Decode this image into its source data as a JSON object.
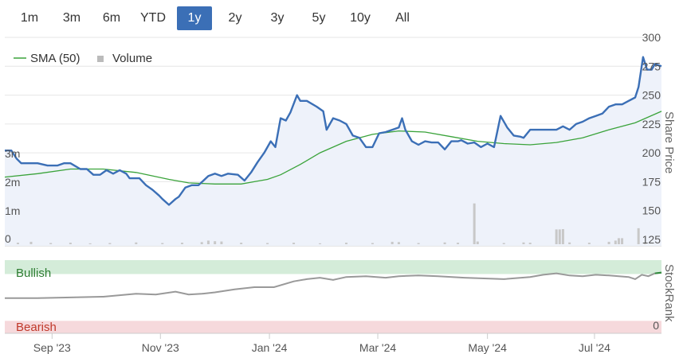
{
  "range_buttons": [
    {
      "label": "1m",
      "active": false
    },
    {
      "label": "3m",
      "active": false
    },
    {
      "label": "6m",
      "active": false
    },
    {
      "label": "YTD",
      "active": false
    },
    {
      "label": "1y",
      "active": true
    },
    {
      "label": "2y",
      "active": false
    },
    {
      "label": "3y",
      "active": false
    },
    {
      "label": "5y",
      "active": false
    },
    {
      "label": "10y",
      "active": false
    },
    {
      "label": "All",
      "active": false
    }
  ],
  "colors": {
    "price": "#3b6fb6",
    "sma": "#3aa33a",
    "volume": "#c8c8c8",
    "active_button": "#3b6fb6",
    "bullish_band": "#d4ecd9",
    "bearish_band": "#f6d9dc",
    "rank_line": "#999999",
    "rank_bullish_line": "#2e8b3a"
  },
  "chart_data": [
    {
      "type": "line",
      "panel": "price",
      "x_labels": [
        "Sep '23",
        "Nov '23",
        "Jan '24",
        "Mar '24",
        "May '24",
        "Jul '24"
      ],
      "x_range": [
        "2023-08-07",
        "2024-08-07"
      ],
      "ylabel": "Share Price",
      "ylim": [
        125,
        300
      ],
      "y_ticks": [
        125,
        150,
        175,
        200,
        225,
        250,
        275,
        300
      ],
      "volume_ticks": [
        "0",
        "1m",
        "2m",
        "3m"
      ],
      "volume_ylim": [
        0,
        3000000
      ],
      "legend": [
        "SMA (50)",
        "Volume"
      ],
      "series": [
        {
          "kind": "price",
          "points": [
            [
              0,
              202
            ],
            [
              0.01,
              202
            ],
            [
              0.018,
              195
            ],
            [
              0.025,
              191
            ],
            [
              0.035,
              191
            ],
            [
              0.05,
              191
            ],
            [
              0.065,
              189
            ],
            [
              0.08,
              189
            ],
            [
              0.09,
              191
            ],
            [
              0.1,
              191
            ],
            [
              0.115,
              186
            ],
            [
              0.125,
              186
            ],
            [
              0.135,
              181
            ],
            [
              0.145,
              181
            ],
            [
              0.155,
              185
            ],
            [
              0.165,
              182
            ],
            [
              0.175,
              185
            ],
            [
              0.185,
              182
            ],
            [
              0.19,
              178
            ],
            [
              0.205,
              178
            ],
            [
              0.215,
              172
            ],
            [
              0.225,
              168
            ],
            [
              0.235,
              163
            ],
            [
              0.24,
              160
            ],
            [
              0.25,
              155
            ],
            [
              0.26,
              160
            ],
            [
              0.265,
              162
            ],
            [
              0.275,
              170
            ],
            [
              0.285,
              172
            ],
            [
              0.295,
              172
            ],
            [
              0.31,
              180
            ],
            [
              0.32,
              182
            ],
            [
              0.33,
              180
            ],
            [
              0.34,
              182
            ],
            [
              0.355,
              181
            ],
            [
              0.365,
              176
            ],
            [
              0.375,
              183
            ],
            [
              0.385,
              192
            ],
            [
              0.395,
              200
            ],
            [
              0.405,
              210
            ],
            [
              0.412,
              205
            ],
            [
              0.42,
              230
            ],
            [
              0.428,
              228
            ],
            [
              0.435,
              235
            ],
            [
              0.445,
              250
            ],
            [
              0.45,
              245
            ],
            [
              0.46,
              245
            ],
            [
              0.475,
              240
            ],
            [
              0.485,
              236
            ],
            [
              0.49,
              220
            ],
            [
              0.5,
              230
            ],
            [
              0.51,
              228
            ],
            [
              0.52,
              225
            ],
            [
              0.53,
              215
            ],
            [
              0.54,
              213
            ],
            [
              0.55,
              205
            ],
            [
              0.56,
              205
            ],
            [
              0.57,
              217
            ],
            [
              0.58,
              218
            ],
            [
              0.59,
              220
            ],
            [
              0.6,
              222
            ],
            [
              0.605,
              230
            ],
            [
              0.61,
              220
            ],
            [
              0.62,
              210
            ],
            [
              0.63,
              207
            ],
            [
              0.64,
              210
            ],
            [
              0.65,
              209
            ],
            [
              0.66,
              209
            ],
            [
              0.67,
              203
            ],
            [
              0.68,
              210
            ],
            [
              0.69,
              210
            ],
            [
              0.695,
              211
            ],
            [
              0.705,
              208
            ],
            [
              0.715,
              209
            ],
            [
              0.725,
              205
            ],
            [
              0.735,
              208
            ],
            [
              0.745,
              205
            ],
            [
              0.755,
              232
            ],
            [
              0.765,
              222
            ],
            [
              0.775,
              215
            ],
            [
              0.785,
              214
            ],
            [
              0.79,
              213
            ],
            [
              0.8,
              220
            ],
            [
              0.81,
              220
            ],
            [
              0.82,
              220
            ],
            [
              0.83,
              220
            ],
            [
              0.84,
              220
            ],
            [
              0.85,
              223
            ],
            [
              0.86,
              220
            ],
            [
              0.87,
              225
            ],
            [
              0.88,
              227
            ],
            [
              0.89,
              230
            ],
            [
              0.9,
              232
            ],
            [
              0.91,
              234
            ],
            [
              0.92,
              240
            ],
            [
              0.93,
              242
            ],
            [
              0.94,
              242
            ],
            [
              0.95,
              245
            ],
            [
              0.96,
              248
            ],
            [
              0.965,
              257
            ],
            [
              0.972,
              283
            ],
            [
              0.978,
              272
            ],
            [
              0.985,
              272
            ],
            [
              0.99,
              277
            ],
            [
              1,
              275
            ]
          ]
        },
        {
          "kind": "sma",
          "name": "SMA (50)",
          "points": [
            [
              0,
              179
            ],
            [
              0.05,
              182
            ],
            [
              0.1,
              186
            ],
            [
              0.15,
              186
            ],
            [
              0.2,
              183
            ],
            [
              0.25,
              177
            ],
            [
              0.28,
              174
            ],
            [
              0.32,
              173
            ],
            [
              0.36,
              173
            ],
            [
              0.38,
              175
            ],
            [
              0.4,
              177
            ],
            [
              0.42,
              181
            ],
            [
              0.45,
              190
            ],
            [
              0.48,
              200
            ],
            [
              0.52,
              210
            ],
            [
              0.56,
              216
            ],
            [
              0.6,
              219
            ],
            [
              0.64,
              218
            ],
            [
              0.68,
              214
            ],
            [
              0.72,
              210
            ],
            [
              0.76,
              208
            ],
            [
              0.8,
              207
            ],
            [
              0.84,
              209
            ],
            [
              0.88,
              213
            ],
            [
              0.92,
              220
            ],
            [
              0.96,
              226
            ],
            [
              1,
              236
            ]
          ]
        }
      ],
      "volume_bars": [
        [
          0.02,
          0.05
        ],
        [
          0.04,
          0.08
        ],
        [
          0.07,
          0.04
        ],
        [
          0.1,
          0.05
        ],
        [
          0.13,
          0.03
        ],
        [
          0.16,
          0.04
        ],
        [
          0.2,
          0.06
        ],
        [
          0.24,
          0.04
        ],
        [
          0.27,
          0.05
        ],
        [
          0.3,
          0.07
        ],
        [
          0.31,
          0.12
        ],
        [
          0.32,
          0.1
        ],
        [
          0.33,
          0.09
        ],
        [
          0.36,
          0.05
        ],
        [
          0.4,
          0.04
        ],
        [
          0.44,
          0.05
        ],
        [
          0.48,
          0.03
        ],
        [
          0.52,
          0.05
        ],
        [
          0.56,
          0.04
        ],
        [
          0.59,
          0.08
        ],
        [
          0.6,
          0.07
        ],
        [
          0.63,
          0.04
        ],
        [
          0.67,
          0.06
        ],
        [
          0.69,
          0.05
        ],
        [
          0.72,
          0.09
        ],
        [
          0.715,
          1.35
        ],
        [
          0.76,
          0.04
        ],
        [
          0.79,
          0.06
        ],
        [
          0.8,
          0.05
        ],
        [
          0.84,
          0.49
        ],
        [
          0.845,
          0.49
        ],
        [
          0.85,
          0.5
        ],
        [
          0.86,
          0.06
        ],
        [
          0.89,
          0.05
        ],
        [
          0.92,
          0.08
        ],
        [
          0.93,
          0.12
        ],
        [
          0.935,
          0.2
        ],
        [
          0.94,
          0.2
        ],
        [
          0.965,
          0.53
        ],
        [
          0.975,
          0.06
        ]
      ]
    },
    {
      "type": "line",
      "panel": "stockrank",
      "x_range": [
        "2023-08-07",
        "2024-08-07"
      ],
      "ylabel": "StockRank",
      "y_ticks": [
        0
      ],
      "ylim": [
        0,
        100
      ],
      "zones": [
        {
          "label": "Bullish",
          "from": 81,
          "to": 100
        },
        {
          "label": "Bearish",
          "from": 0,
          "to": 17
        }
      ],
      "points": [
        [
          0,
          48
        ],
        [
          0.05,
          48
        ],
        [
          0.1,
          49
        ],
        [
          0.15,
          50
        ],
        [
          0.2,
          54
        ],
        [
          0.23,
          53
        ],
        [
          0.26,
          57
        ],
        [
          0.28,
          53
        ],
        [
          0.3,
          54
        ],
        [
          0.32,
          56
        ],
        [
          0.35,
          60
        ],
        [
          0.38,
          63
        ],
        [
          0.41,
          63
        ],
        [
          0.44,
          71
        ],
        [
          0.46,
          74
        ],
        [
          0.48,
          76
        ],
        [
          0.5,
          73
        ],
        [
          0.52,
          77
        ],
        [
          0.55,
          78
        ],
        [
          0.58,
          76
        ],
        [
          0.6,
          78
        ],
        [
          0.63,
          79
        ],
        [
          0.66,
          78
        ],
        [
          0.7,
          76
        ],
        [
          0.73,
          75
        ],
        [
          0.76,
          74
        ],
        [
          0.8,
          77
        ],
        [
          0.82,
          80
        ],
        [
          0.84,
          82
        ],
        [
          0.86,
          79
        ],
        [
          0.88,
          78
        ],
        [
          0.9,
          80
        ],
        [
          0.92,
          79
        ],
        [
          0.95,
          77
        ],
        [
          0.96,
          74
        ],
        [
          0.97,
          80
        ],
        [
          0.98,
          78
        ],
        [
          0.99,
          82
        ],
        [
          1,
          83
        ]
      ]
    }
  ]
}
